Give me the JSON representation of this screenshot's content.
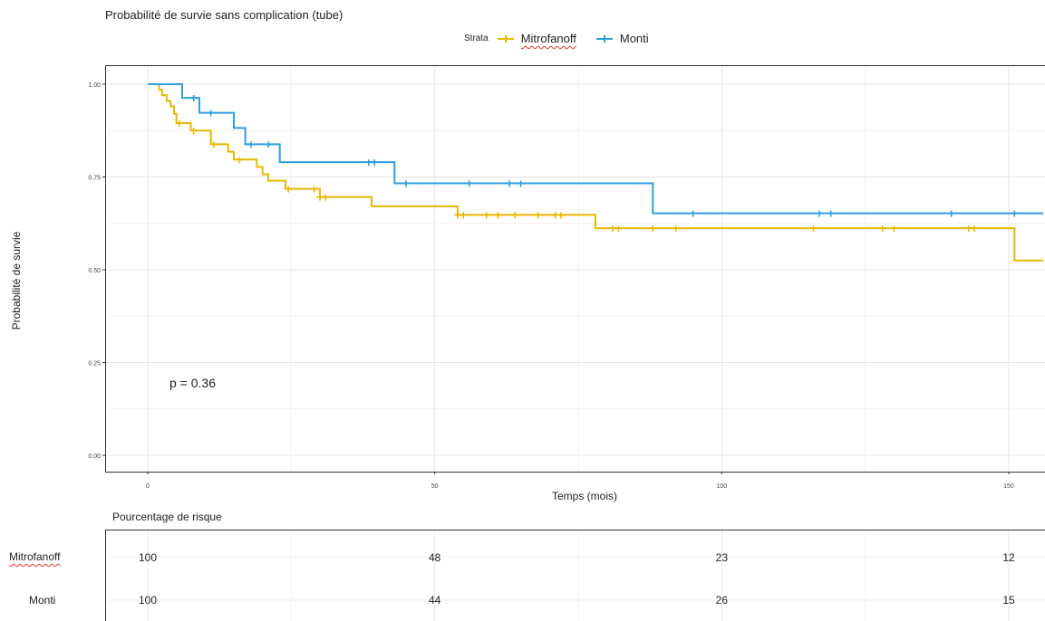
{
  "title": "Probabilité de survie sans complication (tube)",
  "legend": {
    "strata_label": "Strata",
    "items": [
      {
        "name": "Mitrofanoff",
        "color": "#E7B800"
      },
      {
        "name": "Monti",
        "color": "#2E9FDF"
      }
    ]
  },
  "pvalue_text": "p = 0.36",
  "risk_table": {
    "title": "Pourcentage de risque",
    "times": [
      0,
      50,
      100,
      150
    ],
    "rows": [
      {
        "name": "Mitrofanoff",
        "values": [
          "100",
          "48",
          "23",
          "12"
        ]
      },
      {
        "name": "Monti",
        "values": [
          "100",
          "44",
          "26",
          "15"
        ]
      }
    ]
  },
  "chart_data": {
    "type": "line",
    "title": "Probabilité de survie sans complication (tube)",
    "xlabel": "Temps (mois)",
    "ylabel": "Probabilité de survie",
    "xlim": [
      -7,
      156
    ],
    "ylim": [
      -0.05,
      1.05
    ],
    "xticks": [
      0,
      50,
      100,
      150
    ],
    "xtick_labels": [
      "0",
      "50",
      "100",
      "150"
    ],
    "yticks": [
      0,
      0.25,
      0.5,
      0.75,
      1.0
    ],
    "ytick_labels": [
      "0.00",
      "0.25",
      "0.50",
      "0.75",
      "1.00"
    ],
    "grid": true,
    "legend_position": "top",
    "series": [
      {
        "name": "Mitrofanoff",
        "color": "#E7B800",
        "steps": [
          [
            0,
            1.0
          ],
          [
            2,
            0.985
          ],
          [
            2.5,
            0.97
          ],
          [
            3.3,
            0.955
          ],
          [
            4,
            0.94
          ],
          [
            4.6,
            0.92
          ],
          [
            5,
            0.895
          ],
          [
            7.5,
            0.875
          ],
          [
            11,
            0.838
          ],
          [
            14,
            0.818
          ],
          [
            15,
            0.797
          ],
          [
            19,
            0.777
          ],
          [
            20,
            0.757
          ],
          [
            21,
            0.74
          ],
          [
            24,
            0.718
          ],
          [
            30,
            0.696
          ],
          [
            39,
            0.671
          ],
          [
            54,
            0.648
          ],
          [
            78,
            0.612
          ],
          [
            151,
            0.525
          ],
          [
            156,
            0.525
          ]
        ],
        "censor_x": [
          5.5,
          8,
          11.5,
          16,
          24.5,
          29,
          30,
          31,
          54,
          55,
          59,
          61,
          64,
          68,
          71,
          72,
          81,
          82,
          88,
          92,
          116,
          128,
          130,
          143,
          144
        ],
        "censor_y": [
          0.895,
          0.875,
          0.838,
          0.797,
          0.718,
          0.718,
          0.696,
          0.696,
          0.648,
          0.648,
          0.648,
          0.648,
          0.648,
          0.648,
          0.648,
          0.648,
          0.612,
          0.612,
          0.612,
          0.612,
          0.612,
          0.612,
          0.612,
          0.612,
          0.612
        ]
      },
      {
        "name": "Monti",
        "color": "#2E9FDF",
        "steps": [
          [
            0,
            1.0
          ],
          [
            6,
            0.963
          ],
          [
            9,
            0.923
          ],
          [
            15,
            0.882
          ],
          [
            17,
            0.838
          ],
          [
            23,
            0.79
          ],
          [
            43,
            0.733
          ],
          [
            88,
            0.652
          ],
          [
            156,
            0.652
          ]
        ],
        "censor_x": [
          8,
          11,
          18,
          21,
          38.5,
          39.5,
          45,
          56,
          63,
          65,
          95,
          117,
          119,
          140,
          151
        ],
        "censor_y": [
          0.963,
          0.923,
          0.838,
          0.838,
          0.79,
          0.79,
          0.733,
          0.733,
          0.733,
          0.733,
          0.652,
          0.652,
          0.652,
          0.652,
          0.652
        ]
      }
    ]
  }
}
